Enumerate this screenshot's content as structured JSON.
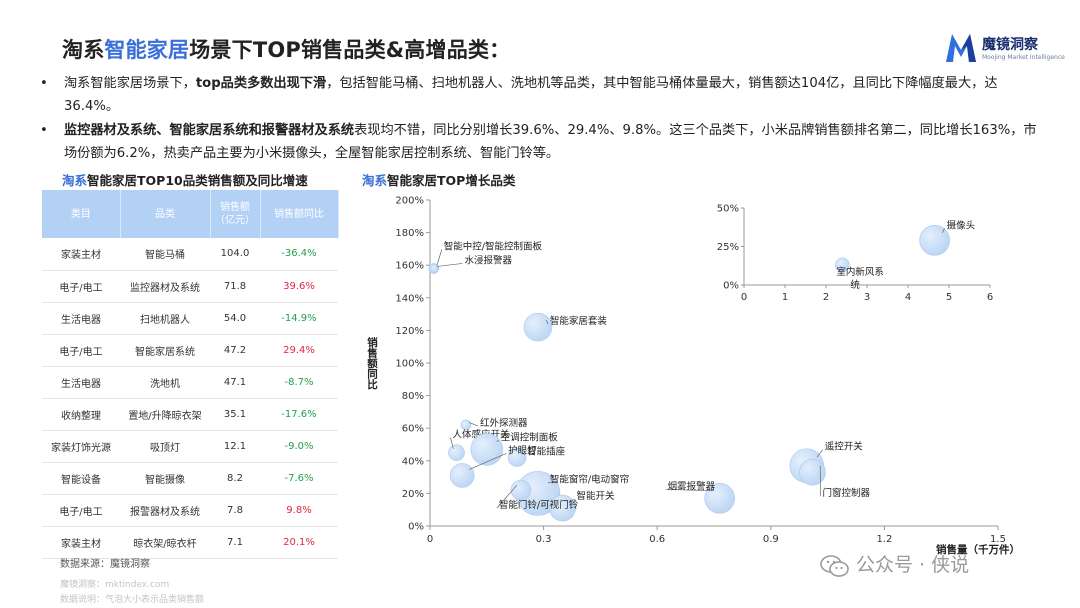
{
  "title": {
    "prefix": "淘系",
    "highlight": "智能家居",
    "suffix": "场景下TOP销售品类&高增品类："
  },
  "logo": {
    "name": "魔镜洞察",
    "tagline": "Moojing Market Intelligence",
    "brand_color": "#1c2f6e"
  },
  "bullets": [
    {
      "marker": "•",
      "parts": [
        {
          "text": "淘系智能家居场景下，",
          "bold": false
        },
        {
          "text": "top品类多数出现下滑",
          "bold": true
        },
        {
          "text": "，包括智能马桶、扫地机器人、洗地机等品类，其中智能马桶体量最大，销售额达104亿，且同比下降幅度最大，达36.4%。",
          "bold": false
        }
      ]
    },
    {
      "marker": "•",
      "parts": [
        {
          "text": "监控器材及系统、智能家居系统和报警器材及系统",
          "bold": true
        },
        {
          "text": "表现均不错，同比分别增长39.6%、29.4%、9.8%。这三个品类下，小米品牌销售额排名第二，同比增长163%，市场份额为6.2%，热卖产品主要为小米摄像头，全屋智能家居控制系统、智能门铃等。",
          "bold": false
        }
      ]
    }
  ],
  "table_section": {
    "title_prefix": "淘系",
    "title_suffix": "智能家居TOP10品类销售额及同比增速",
    "headers": [
      "类目",
      "品类",
      "销售额\n（亿元）",
      "销售额同比"
    ],
    "rows": [
      {
        "cat": "家装主材",
        "item": "智能马桶",
        "sales": "104.0",
        "yoy": "-36.4%",
        "dir": "neg"
      },
      {
        "cat": "电子/电工",
        "item": "监控器材及系统",
        "sales": "71.8",
        "yoy": "39.6%",
        "dir": "pos"
      },
      {
        "cat": "生活电器",
        "item": "扫地机器人",
        "sales": "54.0",
        "yoy": "-14.9%",
        "dir": "neg"
      },
      {
        "cat": "电子/电工",
        "item": "智能家居系统",
        "sales": "47.2",
        "yoy": "29.4%",
        "dir": "pos"
      },
      {
        "cat": "生活电器",
        "item": "洗地机",
        "sales": "47.1",
        "yoy": "-8.7%",
        "dir": "neg"
      },
      {
        "cat": "收纳整理",
        "item": "置地/升降晾衣架",
        "sales": "35.1",
        "yoy": "-17.6%",
        "dir": "neg"
      },
      {
        "cat": "家装灯饰光源",
        "item": "吸顶灯",
        "sales": "12.1",
        "yoy": "-9.0%",
        "dir": "neg"
      },
      {
        "cat": "智能设备",
        "item": "智能摄像",
        "sales": "8.2",
        "yoy": "-7.6%",
        "dir": "neg"
      },
      {
        "cat": "电子/电工",
        "item": "报警器材及系统",
        "sales": "7.8",
        "yoy": "9.8%",
        "dir": "pos"
      },
      {
        "cat": "家装主材",
        "item": "晾衣架/晾衣杆",
        "sales": "7.1",
        "yoy": "20.1%",
        "dir": "pos"
      }
    ],
    "colors": {
      "header_bg": "#b3d1f5",
      "neg": "#23a04a",
      "pos": "#e0283a"
    }
  },
  "chart_section": {
    "title_prefix": "淘系",
    "title_suffix": "智能家居TOP增长品类"
  },
  "chart_data": {
    "type": "scatter",
    "xlabel": "销售量（千万件）",
    "ylabel": "销售额同比",
    "xlim": [
      0,
      1.5
    ],
    "ylim": [
      0,
      2.0
    ],
    "x_ticks": [
      "0",
      "0.3",
      "0.6",
      "0.9",
      "1.2",
      "1.5"
    ],
    "y_ticks": [
      "0%",
      "20%",
      "40%",
      "60%",
      "80%",
      "100%",
      "120%",
      "140%",
      "160%",
      "180%",
      "200%"
    ],
    "bubble_color": "#b8d4f4",
    "points": [
      {
        "label": "智能中控/智能控制面板",
        "x": 0.01,
        "y": 1.58,
        "size": 5
      },
      {
        "label": "水浸报警器",
        "x": 0.012,
        "y": 1.58,
        "size": 4
      },
      {
        "label": "智能家居套装",
        "x": 0.285,
        "y": 1.22,
        "size": 14
      },
      {
        "label": "红外探测器",
        "x": 0.095,
        "y": 0.62,
        "size": 5
      },
      {
        "label": "人体感应开关",
        "x": 0.07,
        "y": 0.45,
        "size": 8
      },
      {
        "label": "空调控制面板",
        "x": 0.15,
        "y": 0.47,
        "size": 16
      },
      {
        "label": "智能插座",
        "x": 0.23,
        "y": 0.42,
        "size": 9
      },
      {
        "label": "护眼灯",
        "x": 0.085,
        "y": 0.31,
        "size": 12
      },
      {
        "label": "智能窗帘/电动窗帘",
        "x": 0.285,
        "y": 0.2,
        "size": 22
      },
      {
        "label": "智能开关",
        "x": 0.35,
        "y": 0.11,
        "size": 13
      },
      {
        "label": "智能门铃/可视门铃",
        "x": 0.24,
        "y": 0.22,
        "size": 10
      },
      {
        "label": "烟雾报警器",
        "x": 0.765,
        "y": 0.17,
        "size": 15
      },
      {
        "label": "遥控开关",
        "x": 0.995,
        "y": 0.37,
        "size": 17
      },
      {
        "label": "门窗控制器",
        "x": 1.01,
        "y": 0.33,
        "size": 13
      }
    ],
    "inset": {
      "xlim": [
        0,
        6
      ],
      "ylim": [
        0,
        0.5
      ],
      "x_ticks": [
        "0",
        "1",
        "2",
        "3",
        "4",
        "5",
        "6"
      ],
      "y_ticks": [
        "0%",
        "25%",
        "50%"
      ],
      "points": [
        {
          "label": "摄像头",
          "x": 4.65,
          "y": 0.29,
          "size": 15
        },
        {
          "label": "室内新风系统",
          "x": 2.4,
          "y": 0.13,
          "size": 7
        }
      ]
    }
  },
  "source": "数据来源：魔镜洞察",
  "faint_note_1": "魔镜洞察：mktindex.com",
  "faint_note_2": "数据说明：气泡大小表示品类销售额",
  "watermark": "公众号 · 侠说"
}
